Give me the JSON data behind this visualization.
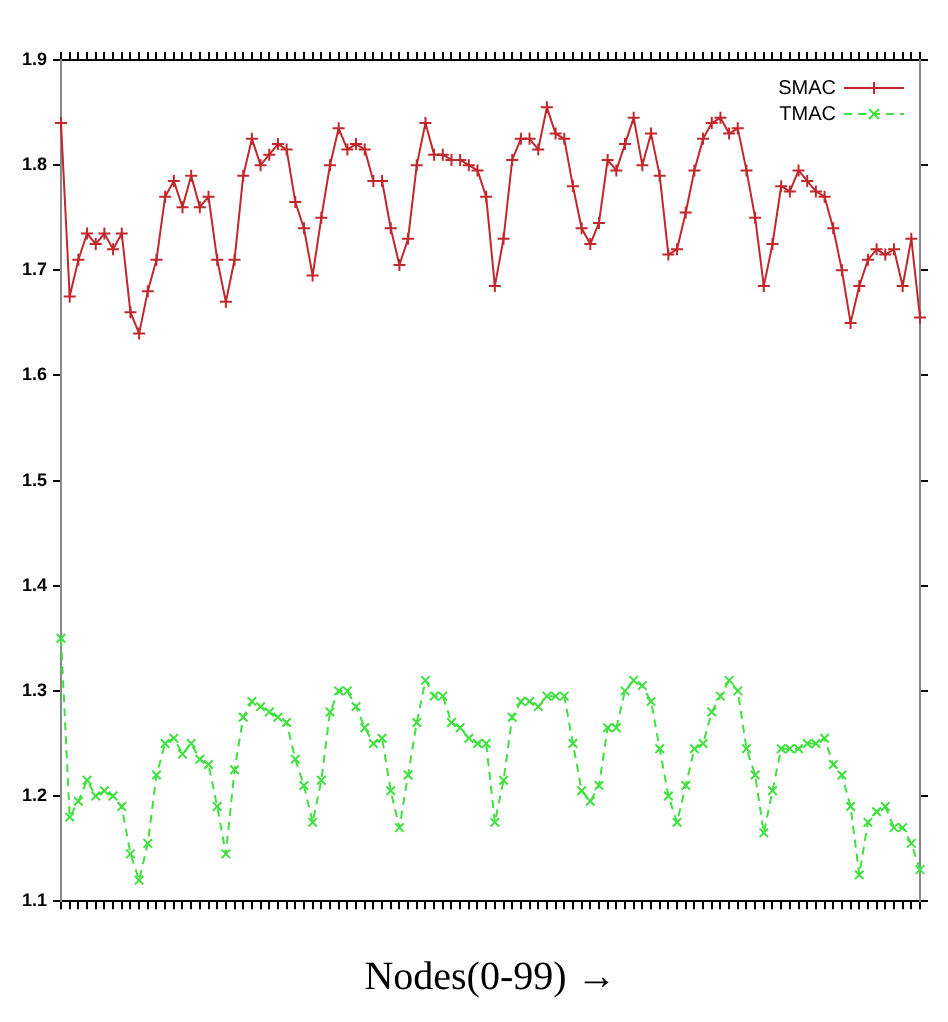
{
  "chart_data": {
    "type": "line",
    "xlabel": "Nodes(0-99) →",
    "categories": [
      null,
      null,
      null,
      null,
      null,
      null,
      null,
      null,
      null,
      null,
      null,
      null,
      null,
      null,
      null,
      null,
      null,
      null,
      null,
      null,
      null,
      null,
      null,
      null,
      null,
      null,
      null,
      null,
      null,
      null,
      null,
      null,
      null,
      null,
      null,
      null,
      null,
      null,
      null,
      null,
      null,
      null,
      null,
      null,
      null,
      null,
      null,
      null,
      null,
      null,
      null,
      null,
      null,
      null,
      null,
      null,
      null,
      null,
      null,
      null,
      null,
      null,
      null,
      null,
      null,
      null,
      null,
      null,
      null,
      null,
      null,
      null,
      null,
      null,
      null,
      null,
      null,
      null,
      null,
      null,
      null,
      null,
      null,
      null,
      null,
      null,
      null,
      null,
      null,
      null,
      null,
      null,
      null,
      null,
      null,
      null,
      null,
      null,
      null,
      null
    ],
    "series": [
      {
        "name": "SMAC",
        "color": "#c0282d",
        "marker": "cross",
        "line_style": "solid",
        "values": [
          1.84,
          1.675,
          1.71,
          1.735,
          1.725,
          1.735,
          1.72,
          1.735,
          1.66,
          1.64,
          1.68,
          1.71,
          1.77,
          1.785,
          1.76,
          1.79,
          1.76,
          1.77,
          1.71,
          1.67,
          1.71,
          1.79,
          1.825,
          1.8,
          1.81,
          1.82,
          1.815,
          1.765,
          1.74,
          1.695,
          1.75,
          1.8,
          1.835,
          1.815,
          1.82,
          1.815,
          1.785,
          1.785,
          1.74,
          1.705,
          1.73,
          1.8,
          1.84,
          1.81,
          1.81,
          1.805,
          1.805,
          1.8,
          1.795,
          1.77,
          1.685,
          1.73,
          1.805,
          1.825,
          1.825,
          1.815,
          1.855,
          1.83,
          1.825,
          1.78,
          1.74,
          1.725,
          1.745,
          1.805,
          1.795,
          1.82,
          1.845,
          1.8,
          1.83,
          1.79,
          1.715,
          1.72,
          1.755,
          1.795,
          1.825,
          1.84,
          1.845,
          1.83,
          1.835,
          1.795,
          1.75,
          1.685,
          1.725,
          1.78,
          1.775,
          1.795,
          1.785,
          1.775,
          1.77,
          1.74,
          1.7,
          1.65,
          1.685,
          1.71,
          1.72,
          1.715,
          1.72,
          1.685,
          1.73,
          1.655
        ]
      },
      {
        "name": "TMAC",
        "color": "#40e040",
        "marker": "cross",
        "line_style": "dashed",
        "values": [
          1.35,
          1.18,
          1.195,
          1.215,
          1.2,
          1.205,
          1.2,
          1.19,
          1.145,
          1.12,
          1.155,
          1.22,
          1.25,
          1.255,
          1.24,
          1.25,
          1.235,
          1.23,
          1.19,
          1.145,
          1.225,
          1.275,
          1.29,
          1.285,
          1.28,
          1.275,
          1.27,
          1.235,
          1.21,
          1.175,
          1.215,
          1.28,
          1.3,
          1.3,
          1.285,
          1.265,
          1.25,
          1.255,
          1.205,
          1.17,
          1.22,
          1.27,
          1.31,
          1.295,
          1.295,
          1.27,
          1.265,
          1.255,
          1.25,
          1.25,
          1.175,
          1.215,
          1.275,
          1.29,
          1.29,
          1.285,
          1.295,
          1.295,
          1.295,
          1.25,
          1.205,
          1.195,
          1.21,
          1.265,
          1.265,
          1.3,
          1.31,
          1.305,
          1.29,
          1.245,
          1.2,
          1.175,
          1.21,
          1.245,
          1.25,
          1.28,
          1.295,
          1.31,
          1.3,
          1.245,
          1.22,
          1.165,
          1.205,
          1.245,
          1.245,
          1.245,
          1.25,
          1.25,
          1.255,
          1.23,
          1.22,
          1.19,
          1.125,
          1.175,
          1.185,
          1.19,
          1.17,
          1.17,
          1.155,
          1.13
        ]
      }
    ],
    "ylim": [
      1.1,
      1.9
    ],
    "yticks": [
      1.1,
      1.2,
      1.3,
      1.4,
      1.5,
      1.6,
      1.7,
      1.8,
      1.9
    ],
    "grid": false,
    "legend": "top right"
  }
}
